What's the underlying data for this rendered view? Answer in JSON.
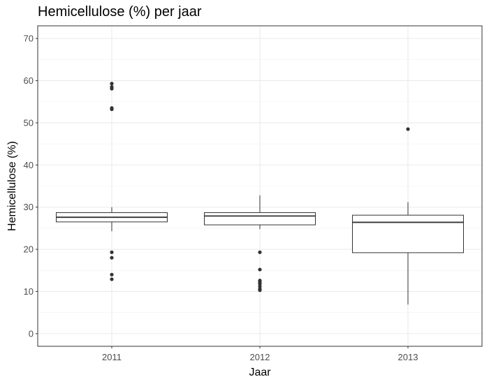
{
  "chart_data": {
    "type": "boxplot",
    "title": "Hemicellulose (%) per jaar",
    "xlabel": "Jaar",
    "ylabel": "Hemicellulose (%)",
    "ylim": [
      -3,
      73
    ],
    "yticks": [
      0,
      10,
      20,
      30,
      40,
      50,
      60,
      70
    ],
    "grid": true,
    "categories": [
      "2011",
      "2012",
      "2013"
    ],
    "boxes": [
      {
        "category": "2011",
        "whisker_low": 24.3,
        "q1": 26.5,
        "median": 27.6,
        "q3": 28.7,
        "whisker_high": 30.0,
        "outliers": [
          59.3,
          58.5,
          58.1,
          53.5,
          53.2,
          19.3,
          18.0,
          14.0,
          12.9
        ]
      },
      {
        "category": "2012",
        "whisker_low": 24.8,
        "q1": 25.8,
        "median": 27.9,
        "q3": 28.7,
        "whisker_high": 32.8,
        "outliers": [
          19.3,
          15.2,
          12.6,
          12.2,
          11.8,
          11.2,
          10.6,
          10.3
        ]
      },
      {
        "category": "2013",
        "whisker_low": 6.9,
        "q1": 19.2,
        "median": 26.4,
        "q3": 28.1,
        "whisker_high": 31.2,
        "outliers": [
          48.5
        ]
      }
    ]
  }
}
